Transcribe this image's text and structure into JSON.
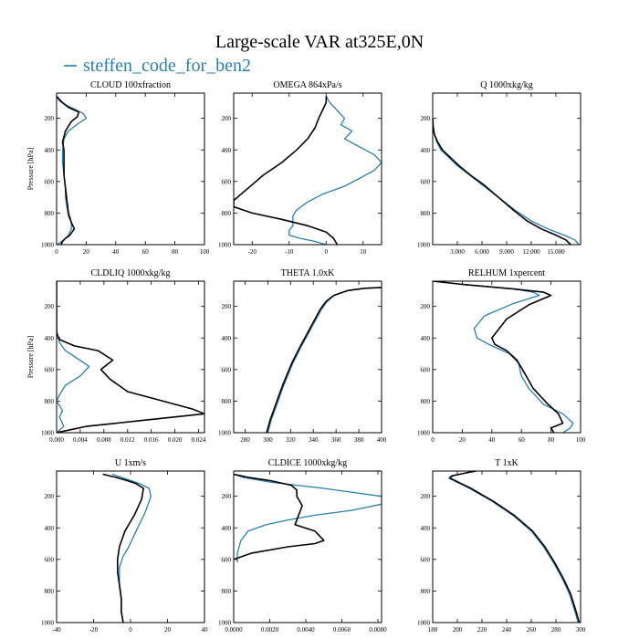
{
  "figure": {
    "title": "Large-scale VAR at325E,0N",
    "legend": [
      {
        "name": "steffen_code_for_ben2",
        "color": "#2a7fb0"
      }
    ],
    "colors": {
      "model": "#2a7fb0",
      "reference": "#000000"
    }
  },
  "chart_data": [
    {
      "type": "line",
      "title": "CLOUD  100xfraction",
      "ylabel": "Pressure [hPa]",
      "xlim": [
        0,
        100
      ],
      "ylim": [
        1000,
        40
      ],
      "xticks": [
        0,
        20,
        40,
        60,
        80,
        100
      ],
      "xticklabels": [
        "0",
        "20",
        "40",
        "60",
        "80",
        "100"
      ],
      "yticks": [
        200,
        400,
        600,
        800,
        1000
      ],
      "yticklabels": [
        "200",
        "400",
        "600",
        "800",
        "1000"
      ],
      "series": [
        {
          "name": "steffen_code_for_ben2",
          "color": "#2a7fb0",
          "x": [
            0,
            2,
            5,
            12,
            18,
            20,
            15,
            8,
            5,
            4,
            4,
            5,
            6,
            6,
            7,
            8,
            10,
            10,
            8,
            5,
            2,
            0
          ],
          "y": [
            60,
            90,
            110,
            140,
            170,
            200,
            230,
            280,
            330,
            400,
            480,
            560,
            640,
            700,
            760,
            820,
            860,
            900,
            940,
            970,
            990,
            1000
          ]
        },
        {
          "name": "",
          "color": "#000000",
          "x": [
            0,
            4,
            8,
            15,
            14,
            10,
            6,
            4,
            5,
            5,
            5,
            6,
            7,
            8,
            10,
            12,
            9,
            6,
            4,
            3
          ],
          "y": [
            60,
            100,
            130,
            160,
            190,
            220,
            280,
            350,
            400,
            480,
            560,
            640,
            720,
            800,
            860,
            900,
            940,
            960,
            980,
            1000
          ]
        }
      ]
    },
    {
      "type": "line",
      "title": "OMEGA  864xPa/s",
      "ylabel": "",
      "xlim": [
        -25,
        15
      ],
      "ylim": [
        1000,
        40
      ],
      "xticks": [
        -20,
        -10,
        0,
        10
      ],
      "xticklabels": [
        "-20",
        "-10",
        "0",
        "10"
      ],
      "yticks": [
        200,
        400,
        600,
        800,
        1000
      ],
      "yticklabels": [
        "200",
        "400",
        "600",
        "800",
        "1000"
      ],
      "series": [
        {
          "name": "steffen_code_for_ben2",
          "color": "#2a7fb0",
          "x": [
            0,
            1,
            3,
            5,
            4,
            7,
            5,
            9,
            13,
            15,
            13,
            9,
            5,
            -1,
            -5,
            -8,
            -9,
            -9,
            -9,
            -10,
            -10,
            -7,
            -3,
            0
          ],
          "y": [
            60,
            100,
            150,
            200,
            240,
            280,
            330,
            380,
            430,
            480,
            530,
            580,
            630,
            680,
            730,
            780,
            820,
            860,
            880,
            910,
            940,
            960,
            980,
            1000
          ]
        },
        {
          "name": "",
          "color": "#000000",
          "x": [
            0,
            0,
            -1,
            -2,
            -3,
            -5,
            -8,
            -12,
            -17,
            -20,
            -23,
            -25,
            -25,
            -20,
            -12,
            -5,
            0,
            2,
            3
          ],
          "y": [
            60,
            100,
            150,
            200,
            260,
            330,
            400,
            480,
            560,
            620,
            680,
            720,
            760,
            800,
            840,
            880,
            920,
            960,
            1000
          ]
        }
      ]
    },
    {
      "type": "line",
      "title": "Q  1000xkg/kg",
      "ylabel": "",
      "xlim": [
        0,
        18
      ],
      "ylim": [
        1000,
        40
      ],
      "xticks": [
        3,
        6,
        9,
        12,
        15
      ],
      "xticklabels": [
        "3.000",
        "6.000",
        "9.000",
        "12.000",
        "15.000"
      ],
      "yticks": [
        200,
        400,
        600,
        800,
        1000
      ],
      "yticklabels": [
        "200",
        "400",
        "600",
        "800",
        "1000"
      ],
      "series": [
        {
          "name": "steffen_code_for_ben2",
          "color": "#2a7fb0",
          "x": [
            0.02,
            0.05,
            0.2,
            0.5,
            1,
            2,
            3,
            4.5,
            6,
            8,
            10,
            12,
            14,
            16,
            17.3,
            17.8
          ],
          "y": [
            200,
            250,
            300,
            350,
            400,
            450,
            500,
            560,
            620,
            700,
            780,
            850,
            900,
            940,
            970,
            1000
          ]
        },
        {
          "name": "",
          "color": "#000000",
          "x": [
            0.02,
            0.05,
            0.2,
            0.6,
            1.2,
            2.2,
            3.2,
            4.6,
            6.2,
            8,
            9.8,
            11.5,
            13.2,
            15,
            16.2,
            16.8
          ],
          "y": [
            200,
            250,
            300,
            350,
            400,
            450,
            500,
            560,
            620,
            700,
            780,
            850,
            900,
            940,
            970,
            1000
          ]
        }
      ]
    },
    {
      "type": "line",
      "title": "CLDLIQ  1000xkg/kg",
      "ylabel": "Pressure [hPa]",
      "xlim": [
        0,
        0.025
      ],
      "ylim": [
        1000,
        40
      ],
      "xticks": [
        0,
        0.004,
        0.008,
        0.012,
        0.016,
        0.02,
        0.024
      ],
      "xticklabels": [
        "0.000",
        "0.004",
        "0.008",
        "0.012",
        "0.016",
        "0.020",
        "0.024"
      ],
      "yticks": [
        200,
        400,
        600,
        800,
        1000
      ],
      "yticklabels": [
        "200",
        "400",
        "600",
        "800",
        "1000"
      ],
      "series": [
        {
          "name": "steffen_code_for_ben2",
          "color": "#2a7fb0",
          "x": [
            0,
            0,
            0.0005,
            0.0015,
            0.0035,
            0.0055,
            0.004,
            0.0015,
            0.0005,
            0,
            0.001,
            0.0005,
            0.0012,
            0
          ],
          "y": [
            40,
            350,
            430,
            480,
            530,
            580,
            640,
            700,
            760,
            800,
            860,
            900,
            960,
            1000
          ]
        },
        {
          "name": "",
          "color": "#000000",
          "x": [
            0,
            0,
            0.0005,
            0.003,
            0.007,
            0.0095,
            0.0075,
            0.009,
            0.012,
            0.018,
            0.023,
            0.025,
            0.015,
            0.005,
            0
          ],
          "y": [
            40,
            370,
            410,
            450,
            480,
            540,
            600,
            660,
            740,
            800,
            850,
            880,
            920,
            960,
            1000
          ]
        }
      ]
    },
    {
      "type": "line",
      "title": "THETA  1.0xK",
      "ylabel": "",
      "xlim": [
        270,
        400
      ],
      "ylim": [
        1000,
        40
      ],
      "xticks": [
        280,
        300,
        320,
        340,
        360,
        380,
        400
      ],
      "xticklabels": [
        "280",
        "300",
        "320",
        "340",
        "360",
        "380",
        "400"
      ],
      "yticks": [
        200,
        400,
        600,
        800,
        1000
      ],
      "yticklabels": [
        "200",
        "400",
        "600",
        "800",
        "1000"
      ],
      "series": [
        {
          "name": "steffen_code_for_ben2",
          "color": "#2a7fb0",
          "x": [
            400,
            385,
            370,
            358,
            352,
            347,
            341,
            335,
            329,
            322,
            314,
            308,
            303,
            300
          ],
          "y": [
            80,
            85,
            100,
            130,
            170,
            220,
            300,
            380,
            460,
            560,
            700,
            820,
            920,
            1000
          ]
        },
        {
          "name": "",
          "color": "#000000",
          "x": [
            400,
            385,
            370,
            358,
            351,
            346,
            340,
            334,
            328,
            321,
            313,
            307,
            302,
            299
          ],
          "y": [
            80,
            85,
            100,
            130,
            170,
            220,
            300,
            380,
            460,
            560,
            700,
            820,
            920,
            1000
          ]
        }
      ]
    },
    {
      "type": "line",
      "title": "RELHUM  1xpercent",
      "ylabel": "",
      "xlim": [
        0,
        100
      ],
      "ylim": [
        1000,
        40
      ],
      "xticks": [
        0,
        20,
        40,
        60,
        80,
        100
      ],
      "xticklabels": [
        "0",
        "20",
        "40",
        "60",
        "80",
        "100"
      ],
      "yticks": [
        200,
        400,
        600,
        800,
        1000
      ],
      "yticklabels": [
        "200",
        "400",
        "600",
        "800",
        "1000"
      ],
      "series": [
        {
          "name": "steffen_code_for_ben2",
          "color": "#2a7fb0",
          "x": [
            0,
            20,
            55,
            68,
            72,
            55,
            35,
            28,
            30,
            40,
            52,
            58,
            60,
            65,
            75,
            88,
            95,
            93,
            88
          ],
          "y": [
            40,
            60,
            90,
            110,
            130,
            180,
            260,
            340,
            400,
            450,
            500,
            560,
            640,
            720,
            820,
            880,
            940,
            970,
            1000
          ]
        },
        {
          "name": "",
          "color": "#000000",
          "x": [
            0,
            20,
            55,
            75,
            80,
            65,
            50,
            45,
            40,
            42,
            50,
            57,
            62,
            68,
            78,
            85,
            88,
            80,
            82
          ],
          "y": [
            40,
            60,
            90,
            110,
            130,
            190,
            280,
            340,
            400,
            440,
            480,
            540,
            620,
            720,
            820,
            880,
            940,
            970,
            1000
          ]
        }
      ]
    },
    {
      "type": "line",
      "title": "U  1xm/s",
      "ylabel": "",
      "xlim": [
        -40,
        40
      ],
      "ylim": [
        1000,
        40
      ],
      "xticks": [
        -40,
        -20,
        0,
        20,
        40
      ],
      "xticklabels": [
        "-40",
        "-20",
        "0",
        "20",
        "40"
      ],
      "yticks": [
        200,
        400,
        600,
        800,
        1000
      ],
      "yticklabels": [
        "200",
        "400",
        "600",
        "800",
        "1000"
      ],
      "series": [
        {
          "name": "steffen_code_for_ben2",
          "color": "#2a7fb0",
          "x": [
            -10,
            -5,
            0,
            5,
            10,
            11,
            8,
            3,
            -1,
            -4,
            -6,
            -6,
            -5,
            -5,
            -4
          ],
          "y": [
            60,
            80,
            100,
            120,
            150,
            200,
            300,
            420,
            520,
            580,
            650,
            750,
            850,
            930,
            1000
          ]
        },
        {
          "name": "",
          "color": "#000000",
          "x": [
            -15,
            -8,
            -2,
            3,
            7,
            6,
            2,
            -3,
            -6,
            -7,
            -7,
            -6,
            -5,
            -5,
            -4
          ],
          "y": [
            60,
            80,
            100,
            120,
            150,
            220,
            320,
            420,
            520,
            600,
            680,
            760,
            850,
            930,
            1000
          ]
        }
      ]
    },
    {
      "type": "line",
      "title": "CLDICE  1000xkg/kg",
      "ylabel": "",
      "xlim": [
        0,
        0.0082
      ],
      "ylim": [
        1000,
        40
      ],
      "xticks": [
        0,
        0.002,
        0.004,
        0.006,
        0.008
      ],
      "xticklabels": [
        "0.0000",
        "0.0020",
        "0.0040",
        "0.0060",
        "0.0080"
      ],
      "yticks": [
        200,
        400,
        600,
        800,
        1000
      ],
      "yticklabels": [
        "200",
        "400",
        "600",
        "800",
        "1000"
      ],
      "series": [
        {
          "name": "steffen_code_for_ben2",
          "color": "#2a7fb0",
          "x": [
            0,
            0.0005,
            0.002,
            0.005,
            0.0082,
            0.0082,
            0.0065,
            0.0045,
            0.003,
            0.0018,
            0.0008,
            0.0004,
            0.0002,
            0.0002
          ],
          "y": [
            60,
            80,
            110,
            150,
            200,
            250,
            290,
            320,
            350,
            380,
            420,
            480,
            560,
            620
          ]
        },
        {
          "name": "",
          "color": "#000000",
          "x": [
            0,
            0.0008,
            0.002,
            0.0032,
            0.0035,
            0.0035,
            0.0038,
            0.0036,
            0.0034,
            0.0045,
            0.005,
            0.0045,
            0.003,
            0.001,
            0
          ],
          "y": [
            60,
            80,
            100,
            130,
            160,
            200,
            260,
            320,
            380,
            420,
            480,
            500,
            520,
            560,
            600
          ]
        }
      ]
    },
    {
      "type": "line",
      "title": "T  1xK",
      "ylabel": "",
      "xlim": [
        180,
        300
      ],
      "ylim": [
        1000,
        40
      ],
      "xticks": [
        180,
        200,
        220,
        240,
        260,
        280,
        300
      ],
      "xticklabels": [
        "180",
        "200",
        "220",
        "240",
        "260",
        "280",
        "300"
      ],
      "yticks": [
        200,
        400,
        600,
        800,
        1000
      ],
      "yticklabels": [
        "200",
        "400",
        "600",
        "800",
        "1000"
      ],
      "series": [
        {
          "name": "steffen_code_for_ben2",
          "color": "#2a7fb0",
          "x": [
            215,
            205,
            195,
            193,
            197,
            210,
            228,
            245,
            260,
            270,
            278,
            285,
            291,
            295,
            298
          ],
          "y": [
            40,
            55,
            70,
            85,
            100,
            150,
            230,
            320,
            420,
            520,
            620,
            720,
            820,
            920,
            1000
          ]
        },
        {
          "name": "",
          "color": "#000000",
          "x": [
            215,
            205,
            196,
            194,
            198,
            211,
            229,
            246,
            261,
            271,
            279,
            286,
            292,
            296,
            299
          ],
          "y": [
            40,
            55,
            70,
            85,
            100,
            150,
            230,
            320,
            420,
            520,
            620,
            720,
            820,
            920,
            1000
          ]
        }
      ]
    }
  ]
}
